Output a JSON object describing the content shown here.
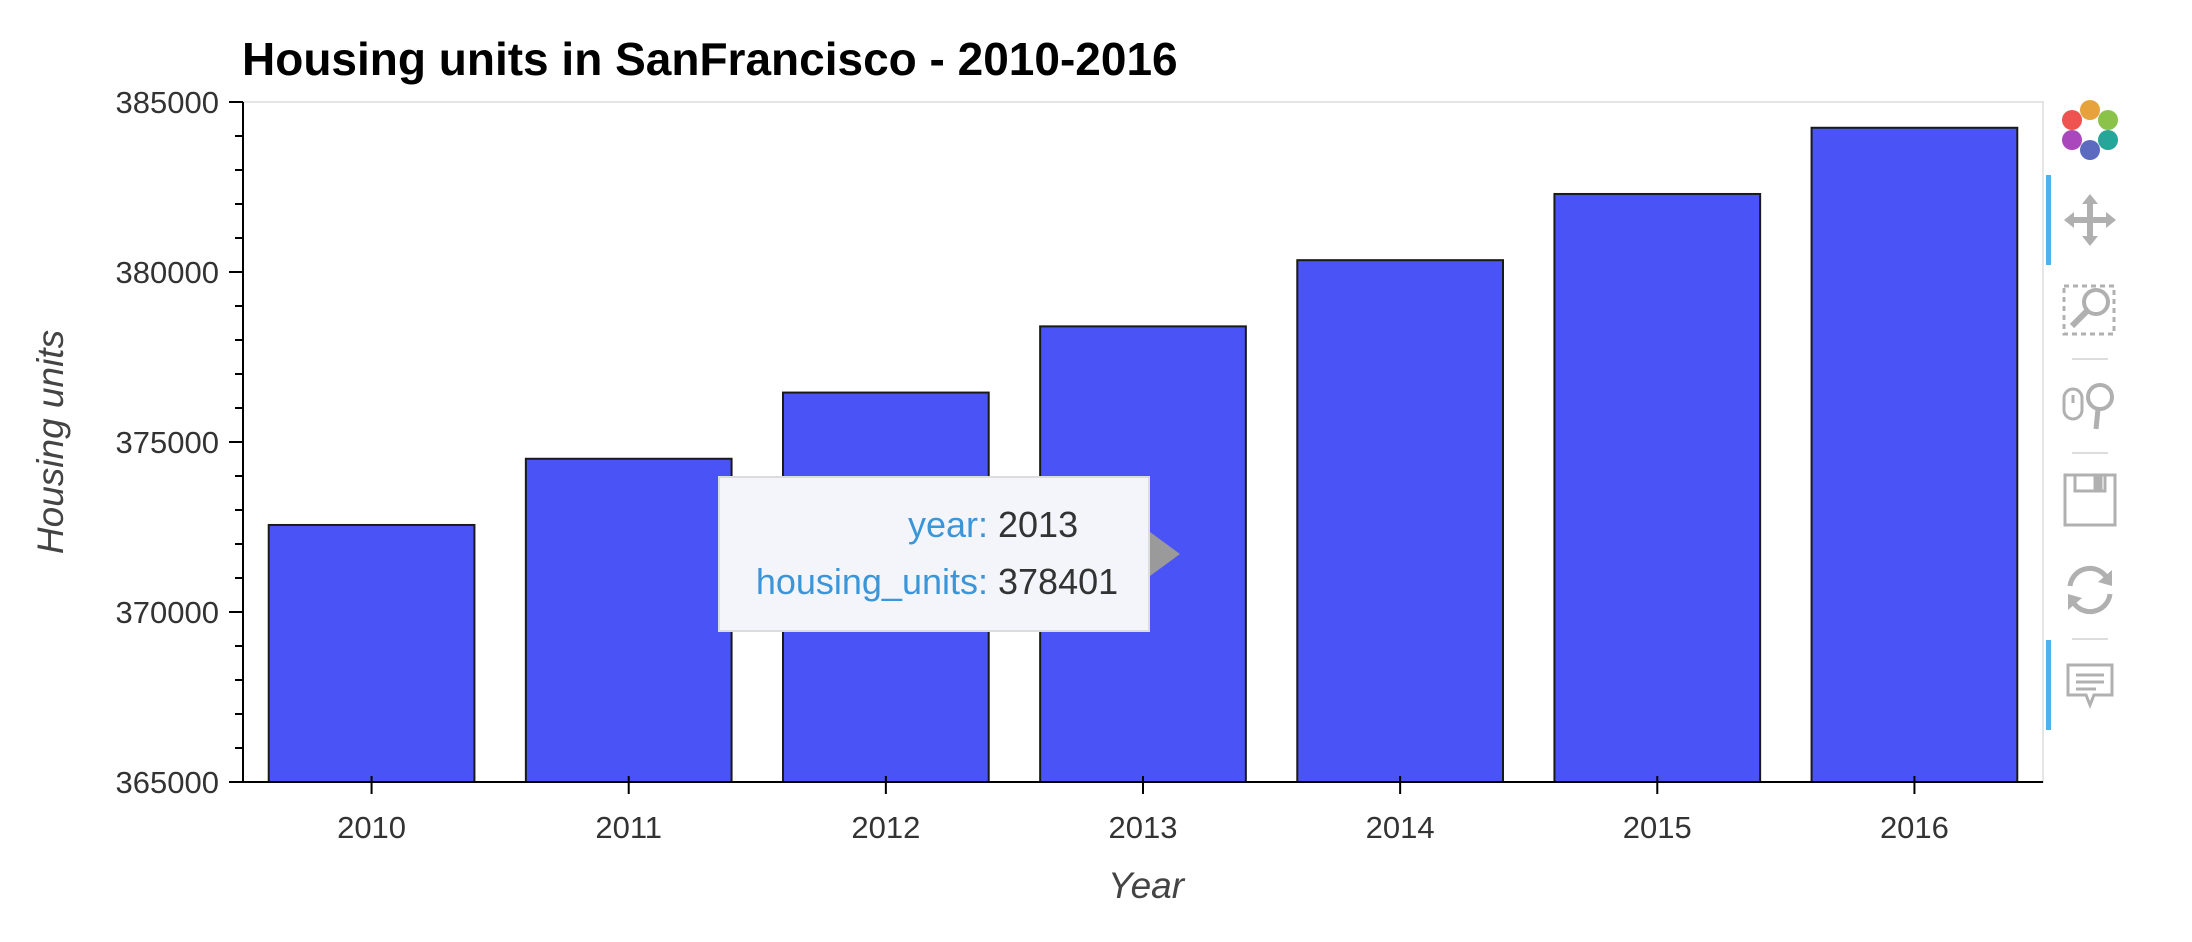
{
  "chart_data": {
    "type": "bar",
    "title": "Housing units in SanFrancisco - 2010-2016",
    "xlabel": "Year",
    "ylabel": "Housing units",
    "categories": [
      "2010",
      "2011",
      "2012",
      "2013",
      "2014",
      "2015",
      "2016"
    ],
    "values": [
      372560,
      374507,
      376454,
      378401,
      380348,
      382295,
      384242
    ],
    "ylim": [
      365000,
      385000
    ],
    "yticks": [
      "365000",
      "370000",
      "375000",
      "380000",
      "385000"
    ],
    "bar_color": "#4a53f5",
    "grid": false,
    "legend": "none"
  },
  "tooltip": {
    "year_key": "year:",
    "year_value": "2013",
    "units_key": "housing_units:",
    "units_value": "378401"
  },
  "toolbar": {
    "tools": [
      "bokeh-logo-icon",
      "pan-icon",
      "box-zoom-icon",
      "wheel-zoom-icon",
      "save-icon",
      "reset-icon",
      "hover-icon"
    ]
  }
}
